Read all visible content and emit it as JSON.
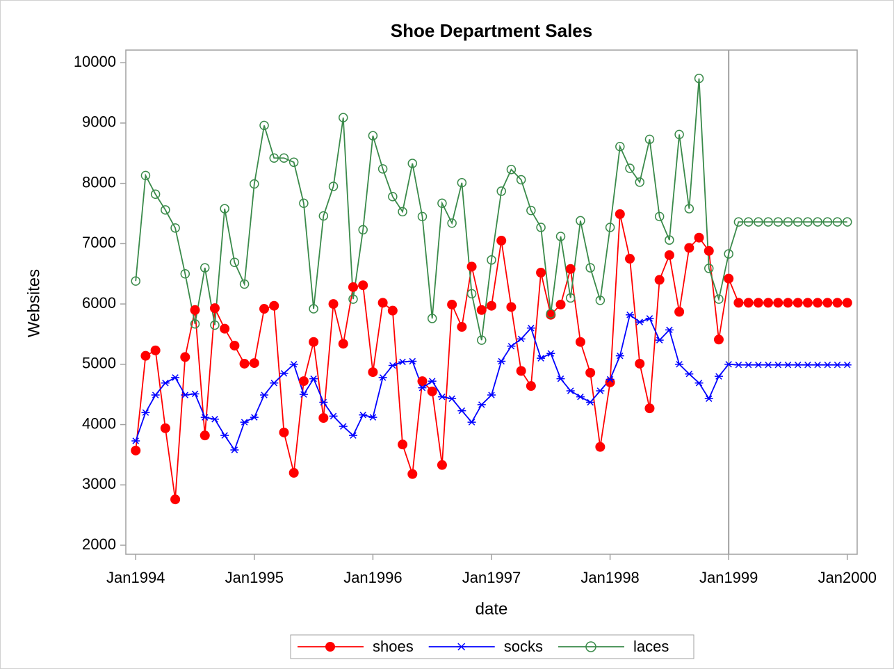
{
  "chart_data": {
    "type": "line",
    "title": "Shoe Department Sales",
    "xlabel": "date",
    "ylabel": "Websites",
    "x": [
      "1994-01",
      "1994-02",
      "1994-03",
      "1994-04",
      "1994-05",
      "1994-06",
      "1994-07",
      "1994-08",
      "1994-09",
      "1994-10",
      "1994-11",
      "1994-12",
      "1995-01",
      "1995-02",
      "1995-03",
      "1995-04",
      "1995-05",
      "1995-06",
      "1995-07",
      "1995-08",
      "1995-09",
      "1995-10",
      "1995-11",
      "1995-12",
      "1996-01",
      "1996-02",
      "1996-03",
      "1996-04",
      "1996-05",
      "1996-06",
      "1996-07",
      "1996-08",
      "1996-09",
      "1996-10",
      "1996-11",
      "1996-12",
      "1997-01",
      "1997-02",
      "1997-03",
      "1997-04",
      "1997-05",
      "1997-06",
      "1997-07",
      "1997-08",
      "1997-09",
      "1997-10",
      "1997-11",
      "1997-12",
      "1998-01",
      "1998-02",
      "1998-03",
      "1998-04",
      "1998-05",
      "1998-06",
      "1998-07",
      "1998-08",
      "1998-09",
      "1998-10",
      "1998-11",
      "1998-12",
      "1999-01",
      "1999-02",
      "1999-03",
      "1999-04",
      "1999-05",
      "1999-06",
      "1999-07",
      "1999-08",
      "1999-09",
      "1999-10",
      "1999-11",
      "1999-12",
      "2000-01"
    ],
    "series": [
      {
        "name": "shoes",
        "color": "#ff0000",
        "marker": "filled-circle",
        "values": [
          3570,
          5140,
          5230,
          3940,
          2760,
          5120,
          5900,
          3820,
          5930,
          5590,
          5310,
          5010,
          5020,
          5920,
          5970,
          3870,
          3200,
          4720,
          5370,
          4110,
          6000,
          5340,
          6280,
          6310,
          4870,
          6020,
          5890,
          3670,
          3180,
          4720,
          4550,
          3330,
          5990,
          5620,
          6620,
          5900,
          5970,
          7050,
          5950,
          4890,
          4640,
          6520,
          5820,
          5990,
          6580,
          5370,
          4860,
          3630,
          4700,
          7490,
          6750,
          5010,
          4270,
          6400,
          6810,
          5870,
          6930,
          7100,
          6880,
          5410,
          6420,
          6020,
          6020,
          6020,
          6020,
          6020,
          6020,
          6020,
          6020,
          6020,
          6020,
          6020,
          6020
        ]
      },
      {
        "name": "socks",
        "color": "#0000ff",
        "marker": "star",
        "values": [
          3730,
          4200,
          4490,
          4690,
          4780,
          4490,
          4510,
          4120,
          4090,
          3820,
          3580,
          4040,
          4120,
          4490,
          4690,
          4850,
          5000,
          4500,
          4760,
          4370,
          4140,
          3970,
          3820,
          4160,
          4120,
          4780,
          4980,
          5040,
          5050,
          4610,
          4720,
          4460,
          4430,
          4230,
          4040,
          4330,
          4490,
          5050,
          5300,
          5420,
          5600,
          5100,
          5180,
          4760,
          4560,
          4460,
          4370,
          4560,
          4750,
          5140,
          5820,
          5700,
          5760,
          5400,
          5570,
          5000,
          4840,
          4690,
          4430,
          4800,
          5000,
          4990,
          4990,
          4990,
          4990,
          4990,
          4990,
          4990,
          4990,
          4990,
          4990,
          4990,
          4990
        ]
      },
      {
        "name": "laces",
        "color": "#3a8a4a",
        "marker": "open-circle",
        "values": [
          6380,
          8130,
          7820,
          7560,
          7260,
          6500,
          5670,
          6600,
          5650,
          7580,
          6690,
          6330,
          7990,
          8960,
          8420,
          8420,
          8350,
          7670,
          5920,
          7460,
          7950,
          9090,
          6080,
          7230,
          8790,
          8240,
          7780,
          7530,
          8330,
          7450,
          5760,
          7670,
          7340,
          8010,
          6170,
          5400,
          6730,
          7870,
          8230,
          8060,
          7550,
          7270,
          5840,
          7120,
          6100,
          7380,
          6600,
          6060,
          7270,
          8610,
          8250,
          8020,
          8730,
          7450,
          7060,
          8810,
          7580,
          9740,
          6590,
          6080,
          6830,
          7360,
          7360,
          7360,
          7360,
          7360,
          7360,
          7360,
          7360,
          7360,
          7360,
          7360,
          7360
        ]
      }
    ],
    "xlim": [
      "1993-12",
      "2000-02"
    ],
    "xticks": [
      {
        "value": "1994-01",
        "label": "Jan1994"
      },
      {
        "value": "1995-01",
        "label": "Jan1995"
      },
      {
        "value": "1996-01",
        "label": "Jan1996"
      },
      {
        "value": "1997-01",
        "label": "Jan1997"
      },
      {
        "value": "1998-01",
        "label": "Jan1998"
      },
      {
        "value": "1999-01",
        "label": "Jan1999"
      },
      {
        "value": "2000-01",
        "label": "Jan2000"
      }
    ],
    "ylim": [
      1850,
      10210
    ],
    "yticks": [
      2000,
      3000,
      4000,
      5000,
      6000,
      7000,
      8000,
      9000,
      10000
    ],
    "refline_x": "1999-01",
    "legend": "bottom"
  }
}
